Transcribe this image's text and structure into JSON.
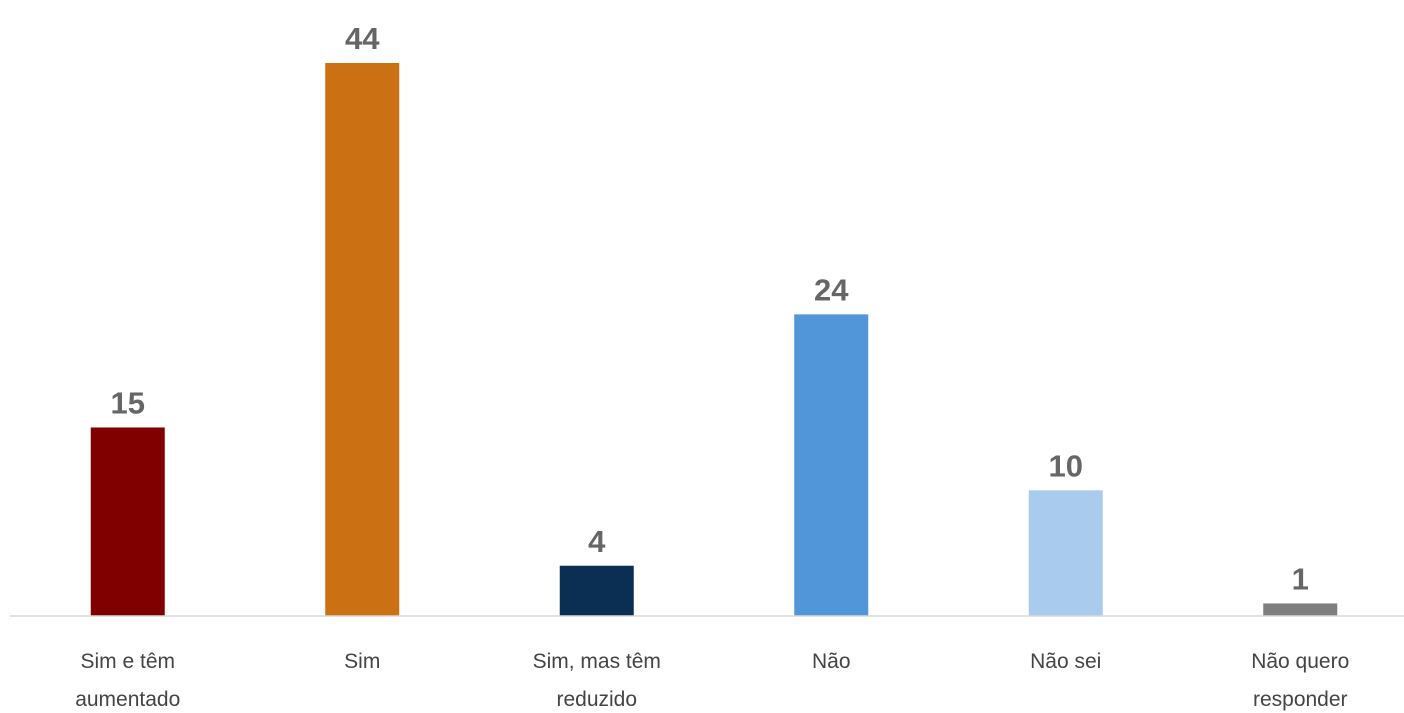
{
  "chart_data": {
    "type": "bar",
    "categories": [
      "Sim e têm aumentado",
      "Sim",
      "Sim, mas têm reduzido",
      "Não",
      "Não sei",
      "Não quero responder"
    ],
    "values": [
      15,
      44,
      4,
      24,
      10,
      1
    ],
    "colors": [
      "#800000",
      "#cc7014",
      "#0b2f52",
      "#5096d9",
      "#a9cbee",
      "#7f7f7f"
    ]
  }
}
